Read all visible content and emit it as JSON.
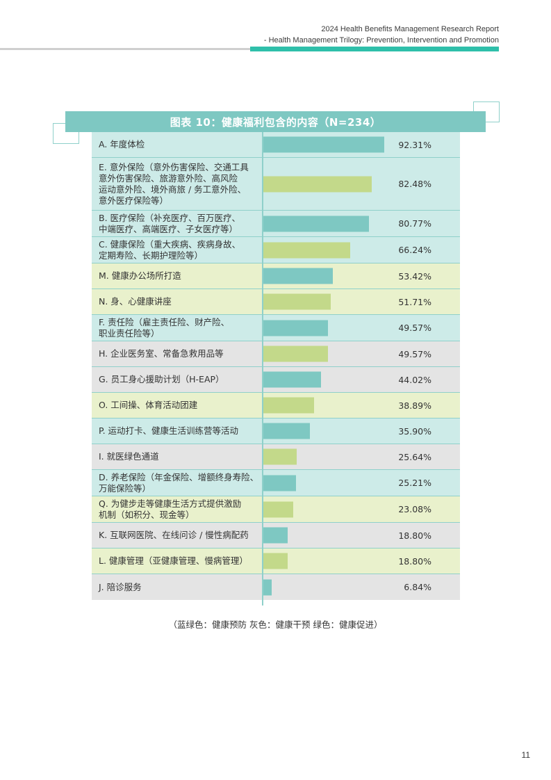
{
  "header": {
    "line1": "2024 Health Benefits Management Research Report",
    "line2": "- Health Management Trilogy: Prevention, Intervention and Promotion"
  },
  "colors": {
    "prevent_bg": "#cdebe8",
    "intervene_bg": "#e4e4e4",
    "promote_bg": "#e9f1cc",
    "teal_bar": "#7ec8c2",
    "green_bar": "#c3d98a",
    "accent": "#2fbfaa"
  },
  "chart_data": {
    "type": "bar",
    "orientation": "horizontal",
    "title": "图表 10：健康福利包含的内容（N=234）",
    "categories": [
      "A. 年度体检",
      "E. 意外保险（意外伤害保险、交通工具意外伤害保险、旅游意外险、高风险运动意外险、境外商旅 / 务工意外险、意外医疗保险等）",
      "B. 医疗保险（补充医疗、百万医疗、中端医疗、高端医疗、子女医疗等）",
      "C. 健康保险（重大疾病、疾病身故、定期寿险、长期护理险等）",
      "M. 健康办公场所打造",
      "N. 身、心健康讲座",
      "F. 责任险（雇主责任险、财产险、职业责任险等）",
      "H. 企业医务室、常备急救用品等",
      "G. 员工身心援助计划（H-EAP）",
      "O. 工间操、体育活动团建",
      "P. 运动打卡、健康生活训练营等活动",
      "I. 就医绿色通道",
      "D. 养老保险（年金保险、增额终身寿险、万能保险等）",
      "Q. 为健步走等健康生活方式提供激励机制（如积分、现金等）",
      "K. 互联网医院、在线问诊 / 慢性病配药",
      "L. 健康管理（亚健康管理、慢病管理）",
      "J. 陪诊服务"
    ],
    "display_labels": [
      "A. 年度体检",
      "E. 意外保险（意外伤害保险、交通工具\n意外伤害保险、旅游意外险、高风险\n运动意外险、境外商旅 / 务工意外险、\n意外医疗保险等）",
      "B. 医疗保险（补充医疗、百万医疗、\n中端医疗、高端医疗、子女医疗等）",
      "C. 健康保险（重大疾病、疾病身故、\n定期寿险、长期护理险等）",
      "M. 健康办公场所打造",
      "N. 身、心健康讲座",
      "F. 责任险（雇主责任险、财产险、\n职业责任险等）",
      "H. 企业医务室、常备急救用品等",
      "G. 员工身心援助计划（H-EAP）",
      "O. 工间操、体育活动团建",
      "P. 运动打卡、健康生活训练营等活动",
      "I. 就医绿色通道",
      "D. 养老保险（年金保险、增额终身寿险、\n万能保险等）",
      "Q. 为健步走等健康生活方式提供激励\n机制（如积分、现金等）",
      "K. 互联网医院、在线问诊 / 慢性病配药",
      "L. 健康管理（亚健康管理、慢病管理）",
      "J. 陪诊服务"
    ],
    "values": [
      92.31,
      82.48,
      80.77,
      66.24,
      53.42,
      51.71,
      49.57,
      49.57,
      44.02,
      38.89,
      35.9,
      25.64,
      25.21,
      23.08,
      18.8,
      18.8,
      6.84
    ],
    "value_labels": [
      "92.31%",
      "82.48%",
      "80.77%",
      "66.24%",
      "53.42%",
      "51.71%",
      "49.57%",
      "49.57%",
      "44.02%",
      "38.89%",
      "35.90%",
      "25.64%",
      "25.21%",
      "23.08%",
      "18.80%",
      "18.80%",
      "6.84%"
    ],
    "row_group": [
      "prevent",
      "prevent",
      "prevent",
      "prevent",
      "promote",
      "promote",
      "prevent",
      "intervene",
      "intervene",
      "promote",
      "prevent",
      "intervene",
      "prevent",
      "promote",
      "intervene",
      "promote",
      "intervene"
    ],
    "bar_color": [
      "teal",
      "green",
      "teal",
      "green",
      "teal",
      "green",
      "teal",
      "green",
      "teal",
      "green",
      "teal",
      "green",
      "teal",
      "green",
      "teal",
      "green",
      "teal"
    ],
    "xlim": [
      0,
      100
    ],
    "grid": false,
    "legend": "（蓝绿色：健康预防    灰色：健康干预    绿色：健康促进）"
  },
  "page_number": "11"
}
